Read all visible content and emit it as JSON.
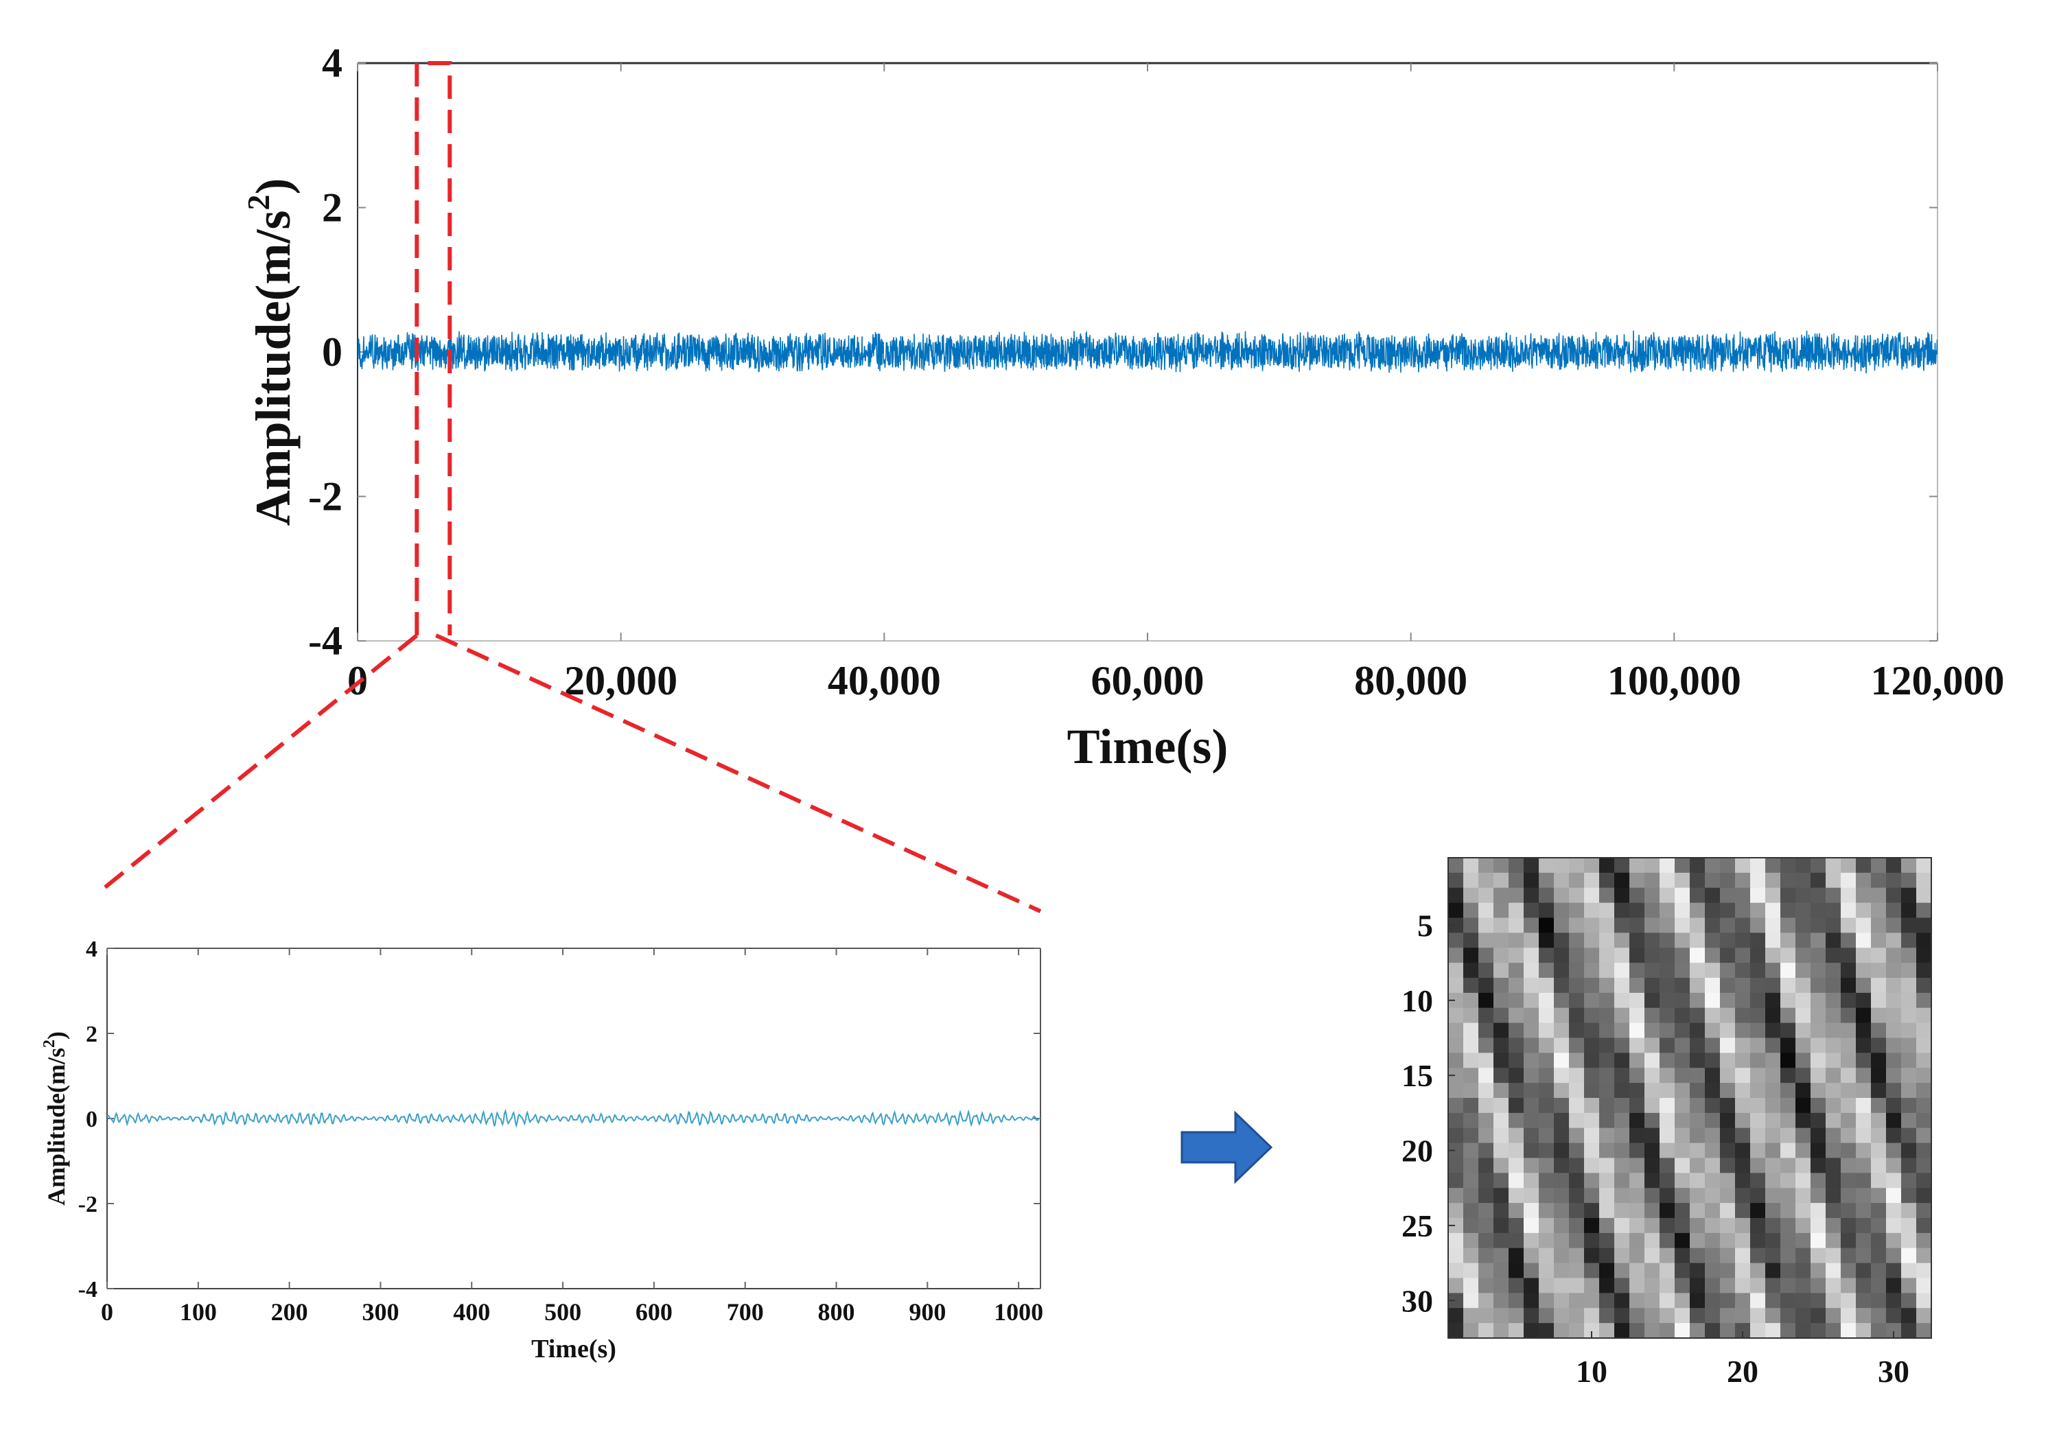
{
  "colors": {
    "signal": "#0072BD",
    "signal_zoom": "#3aa0c8",
    "zoom_marker": "#e8262a",
    "arrow": "#2f6fc4",
    "axis": "#333333"
  },
  "arrow": {
    "icon": "right-arrow-icon"
  },
  "chart_data": [
    {
      "type": "line",
      "panel": "full-signal",
      "xlabel": "Time(s)",
      "ylabel": "Amplitude(m/s",
      "ylabel_sup": "2",
      "ylabel_end": ")",
      "xlim": [
        0,
        120000
      ],
      "ylim": [
        -4,
        4
      ],
      "xticks": [
        0,
        20000,
        40000,
        60000,
        80000,
        100000,
        120000
      ],
      "xtick_labels": [
        "0",
        "20,000",
        "40,000",
        "60,000",
        "80,000",
        "100,000",
        "120,000"
      ],
      "yticks": [
        -4,
        -2,
        0,
        2,
        4
      ],
      "ytick_labels": [
        "-4",
        "-2",
        "0",
        "2",
        "4"
      ],
      "signal": {
        "mean": 0,
        "amplitude": 0.3,
        "style": "dense noise band"
      },
      "zoom_window": {
        "x_start": 4500,
        "x_end": 7000
      }
    },
    {
      "type": "line",
      "panel": "zoomed-signal",
      "xlabel": "Time(s)",
      "ylabel": "Amplitude(m/s",
      "ylabel_sup": "2",
      "ylabel_end": ")",
      "xlim": [
        0,
        1024
      ],
      "ylim": [
        -4,
        4
      ],
      "xticks": [
        0,
        100,
        200,
        300,
        400,
        500,
        600,
        700,
        800,
        900,
        1000
      ],
      "xtick_labels": [
        "0",
        "100",
        "200",
        "300",
        "400",
        "500",
        "600",
        "700",
        "800",
        "900",
        "1000"
      ],
      "yticks": [
        -4,
        -2,
        0,
        2,
        4
      ],
      "ytick_labels": [
        "-4",
        "-2",
        "0",
        "2",
        "4"
      ],
      "signal": {
        "mean": 0,
        "amplitude": 0.2,
        "style": "oscillation"
      }
    },
    {
      "type": "heatmap",
      "panel": "grayscale-image",
      "rows": 32,
      "cols": 32,
      "colormap": "gray",
      "xticks": [
        10,
        20,
        30
      ],
      "xtick_labels": [
        "10",
        "20",
        "30"
      ],
      "yticks": [
        5,
        10,
        15,
        20,
        25,
        30
      ],
      "ytick_labels": [
        "5",
        "10",
        "15",
        "20",
        "25",
        "30"
      ],
      "pattern": "diagonal stripes"
    }
  ]
}
